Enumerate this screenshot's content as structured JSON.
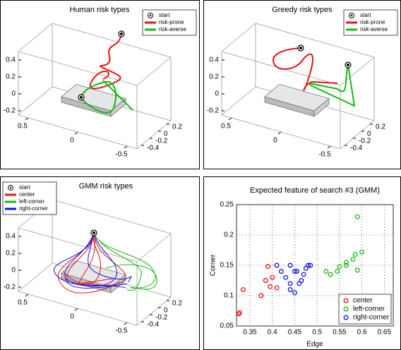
{
  "chart_data": [
    {
      "type": "line3d",
      "title": "Human risk types",
      "legend": "upper right",
      "series": [
        {
          "name": "start",
          "color": "#000000",
          "marker": "circle"
        },
        {
          "name": "risk-prone",
          "color": "#ee1111"
        },
        {
          "name": "risk-averse",
          "color": "#11bb11"
        }
      ],
      "xlim": [
        -0.6,
        0.6
      ],
      "ylim": [
        -0.5,
        0.3
      ],
      "zlim": [
        -0.25,
        0.5
      ],
      "xticks": [
        0.5,
        0,
        -0.5
      ],
      "yticks": [
        0.2,
        0,
        -0.2,
        -0.4
      ],
      "zticks": [
        0.4,
        0.2,
        0,
        -0.2
      ]
    },
    {
      "type": "line3d",
      "title": "Greedy risk types",
      "legend": "upper right",
      "series": [
        {
          "name": "start",
          "color": "#000000",
          "marker": "circle"
        },
        {
          "name": "risk-prone",
          "color": "#ee1111"
        },
        {
          "name": "risk-averse",
          "color": "#11bb11"
        }
      ],
      "xlim": [
        -0.6,
        0.6
      ],
      "ylim": [
        -0.5,
        0.3
      ],
      "zlim": [
        -0.25,
        0.5
      ],
      "xticks": [
        0.5,
        0,
        -0.5
      ],
      "yticks": [
        0.2,
        0,
        -0.2,
        -0.4
      ],
      "zticks": [
        0.4,
        0.2,
        0,
        -0.2
      ]
    },
    {
      "type": "line3d",
      "title": "GMM risk types",
      "legend": "upper left",
      "series": [
        {
          "name": "start",
          "color": "#000000",
          "marker": "circle"
        },
        {
          "name": "center",
          "color": "#ee1111"
        },
        {
          "name": "left-corner",
          "color": "#11bb11"
        },
        {
          "name": "right-corner",
          "color": "#1111ee"
        }
      ],
      "xlim": [
        -0.6,
        0.6
      ],
      "ylim": [
        -0.5,
        0.3
      ],
      "zlim": [
        -0.25,
        0.5
      ],
      "xticks": [
        0.5,
        0,
        -0.5
      ],
      "yticks": [
        0.2,
        0,
        -0.2,
        -0.4
      ],
      "zticks": [
        0.4,
        0.2,
        0,
        -0.2
      ]
    },
    {
      "type": "scatter",
      "title": "Expected feature of search #3 (GMM)",
      "x_label": "Edge",
      "y_label": "Corner",
      "xlim": [
        0.32,
        0.67
      ],
      "ylim": [
        0.05,
        0.25
      ],
      "xticks": [
        0.35,
        0.4,
        0.45,
        0.5,
        0.55,
        0.6,
        0.65
      ],
      "yticks": [
        0.05,
        0.1,
        0.15,
        0.2,
        0.25
      ],
      "grid": true,
      "legend": "lower right",
      "series": [
        {
          "name": "center",
          "color": "#ee1111",
          "x": [
            0.325,
            0.327,
            0.335,
            0.375,
            0.39,
            0.395,
            0.4,
            0.41,
            0.385
          ],
          "y": [
            0.07,
            0.072,
            0.11,
            0.1,
            0.148,
            0.115,
            0.13,
            0.113,
            0.125
          ]
        },
        {
          "name": "left-corner",
          "color": "#11bb11",
          "x": [
            0.59,
            0.6,
            0.585,
            0.58,
            0.59,
            0.55,
            0.545,
            0.565,
            0.52,
            0.53,
            0.565
          ],
          "y": [
            0.23,
            0.172,
            0.168,
            0.16,
            0.142,
            0.148,
            0.14,
            0.15,
            0.14,
            0.135,
            0.155
          ]
        },
        {
          "name": "right-corner",
          "color": "#1111ee",
          "x": [
            0.41,
            0.42,
            0.43,
            0.44,
            0.44,
            0.45,
            0.46,
            0.465,
            0.47,
            0.475,
            0.48,
            0.485,
            0.45,
            0.44,
            0.455
          ],
          "y": [
            0.15,
            0.14,
            0.13,
            0.15,
            0.12,
            0.14,
            0.12,
            0.125,
            0.135,
            0.145,
            0.15,
            0.15,
            0.105,
            0.11,
            0.14
          ]
        }
      ]
    }
  ]
}
